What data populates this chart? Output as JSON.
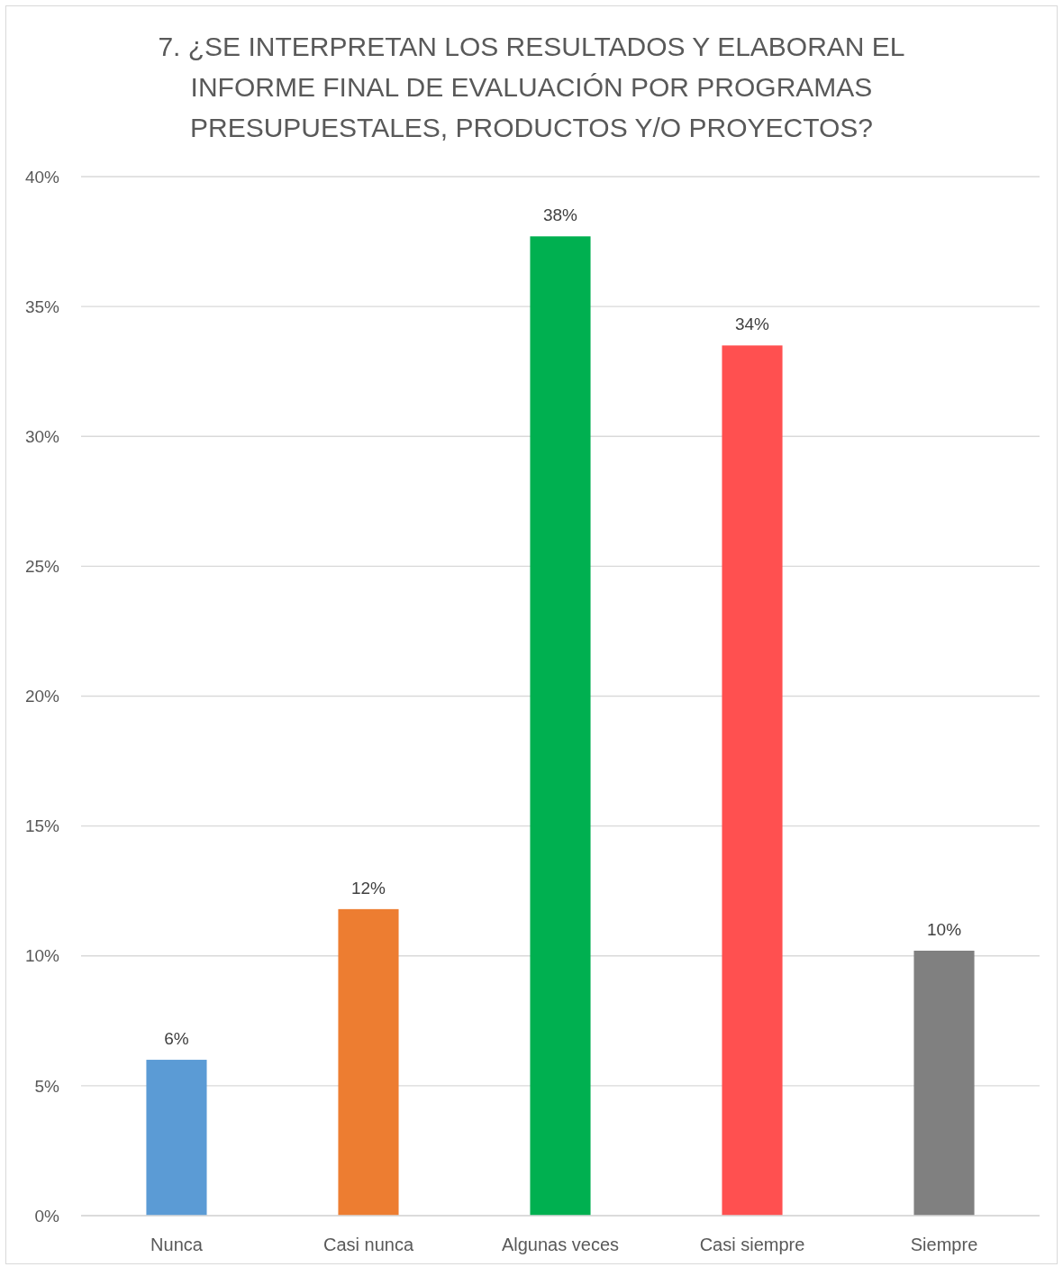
{
  "chart_data": {
    "type": "bar",
    "title": "7. ¿SE INTERPRETAN LOS RESULTADOS Y ELABORAN EL INFORME FINAL DE EVALUACIÓN POR PROGRAMAS PRESUPUESTALES, PRODUCTOS Y/O PROYECTOS?",
    "categories": [
      "Nunca",
      "Casi nunca",
      "Algunas veces",
      "Casi siempre",
      "Siempre"
    ],
    "values": [
      6.0,
      11.8,
      37.7,
      33.5,
      10.2
    ],
    "value_labels": [
      "6%",
      "12%",
      "38%",
      "34%",
      "10%"
    ],
    "colors": [
      "#5b9bd5",
      "#ed7d31",
      "#00b050",
      "#ff5050",
      "#808080"
    ],
    "ylim": [
      0,
      40
    ],
    "yticks": [
      {
        "value": 0,
        "label": "0%"
      },
      {
        "value": 5,
        "label": "5%"
      },
      {
        "value": 10,
        "label": "10%"
      },
      {
        "value": 15,
        "label": "15%"
      },
      {
        "value": 20,
        "label": "20%"
      },
      {
        "value": 25,
        "label": "25%"
      },
      {
        "value": 30,
        "label": "30%"
      },
      {
        "value": 35,
        "label": "35%"
      },
      {
        "value": 40,
        "label": "40%"
      }
    ],
    "grid": "y"
  }
}
